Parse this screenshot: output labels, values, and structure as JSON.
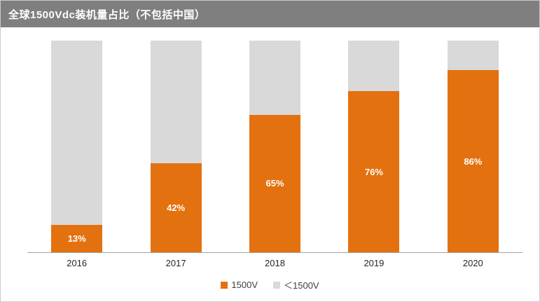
{
  "header": {
    "title": "全球1500Vdc装机量占比（不包括中国）"
  },
  "colors": {
    "header_bg": "#7f7f7f",
    "series_1500v": "#e4710f",
    "series_lt1500v": "#d9d9d9",
    "axis_line": "#a2a2a2",
    "bar_label_text": "#ffffff",
    "tick_text": "#262626",
    "legend_text": "#404040",
    "frame_border": "#c9c9c9"
  },
  "chart_data": {
    "type": "bar",
    "stacked": true,
    "unit": "percent",
    "title": "全球1500Vdc装机量占比（不包括中国）",
    "categories": [
      "2016",
      "2017",
      "2018",
      "2019",
      "2020"
    ],
    "series": [
      {
        "name": "1500V",
        "color": "#e4710f",
        "values": [
          13,
          42,
          65,
          76,
          86
        ],
        "data_labels": [
          "13%",
          "42%",
          "65%",
          "76%",
          "86%"
        ]
      },
      {
        "name": "＜1500V",
        "color": "#d9d9d9",
        "values": [
          87,
          58,
          35,
          24,
          14
        ],
        "data_labels": [
          "",
          "",
          "",
          "",
          ""
        ]
      }
    ],
    "xlabel": "",
    "ylabel": "",
    "ylim": [
      0,
      100
    ],
    "grid": false,
    "y_axis_visible": false,
    "legend_position": "bottom"
  }
}
